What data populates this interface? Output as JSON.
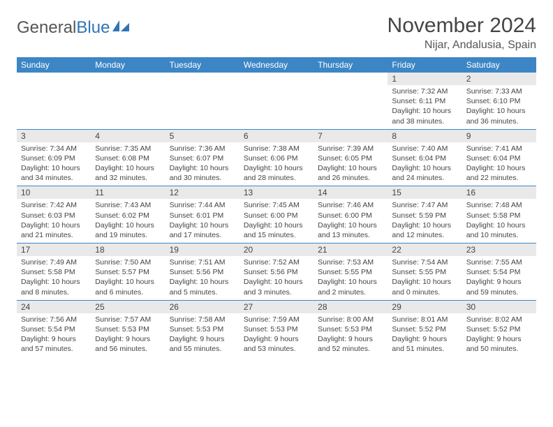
{
  "logo": {
    "text_gray": "General",
    "text_blue": "Blue"
  },
  "header": {
    "month_title": "November 2024",
    "location": "Nijar, Andalusia, Spain"
  },
  "colors": {
    "header_bar": "#3d86c6",
    "day_num_bg": "#e9e9e9",
    "week_divider": "#3d86c6",
    "text": "#444444",
    "logo_gray": "#555555",
    "logo_blue": "#2f74b5",
    "background": "#ffffff"
  },
  "day_names": [
    "Sunday",
    "Monday",
    "Tuesday",
    "Wednesday",
    "Thursday",
    "Friday",
    "Saturday"
  ],
  "weeks": [
    [
      {
        "n": "",
        "sunrise": "",
        "sunset": "",
        "daylight": ""
      },
      {
        "n": "",
        "sunrise": "",
        "sunset": "",
        "daylight": ""
      },
      {
        "n": "",
        "sunrise": "",
        "sunset": "",
        "daylight": ""
      },
      {
        "n": "",
        "sunrise": "",
        "sunset": "",
        "daylight": ""
      },
      {
        "n": "",
        "sunrise": "",
        "sunset": "",
        "daylight": ""
      },
      {
        "n": "1",
        "sunrise": "Sunrise: 7:32 AM",
        "sunset": "Sunset: 6:11 PM",
        "daylight": "Daylight: 10 hours and 38 minutes."
      },
      {
        "n": "2",
        "sunrise": "Sunrise: 7:33 AM",
        "sunset": "Sunset: 6:10 PM",
        "daylight": "Daylight: 10 hours and 36 minutes."
      }
    ],
    [
      {
        "n": "3",
        "sunrise": "Sunrise: 7:34 AM",
        "sunset": "Sunset: 6:09 PM",
        "daylight": "Daylight: 10 hours and 34 minutes."
      },
      {
        "n": "4",
        "sunrise": "Sunrise: 7:35 AM",
        "sunset": "Sunset: 6:08 PM",
        "daylight": "Daylight: 10 hours and 32 minutes."
      },
      {
        "n": "5",
        "sunrise": "Sunrise: 7:36 AM",
        "sunset": "Sunset: 6:07 PM",
        "daylight": "Daylight: 10 hours and 30 minutes."
      },
      {
        "n": "6",
        "sunrise": "Sunrise: 7:38 AM",
        "sunset": "Sunset: 6:06 PM",
        "daylight": "Daylight: 10 hours and 28 minutes."
      },
      {
        "n": "7",
        "sunrise": "Sunrise: 7:39 AM",
        "sunset": "Sunset: 6:05 PM",
        "daylight": "Daylight: 10 hours and 26 minutes."
      },
      {
        "n": "8",
        "sunrise": "Sunrise: 7:40 AM",
        "sunset": "Sunset: 6:04 PM",
        "daylight": "Daylight: 10 hours and 24 minutes."
      },
      {
        "n": "9",
        "sunrise": "Sunrise: 7:41 AM",
        "sunset": "Sunset: 6:04 PM",
        "daylight": "Daylight: 10 hours and 22 minutes."
      }
    ],
    [
      {
        "n": "10",
        "sunrise": "Sunrise: 7:42 AM",
        "sunset": "Sunset: 6:03 PM",
        "daylight": "Daylight: 10 hours and 21 minutes."
      },
      {
        "n": "11",
        "sunrise": "Sunrise: 7:43 AM",
        "sunset": "Sunset: 6:02 PM",
        "daylight": "Daylight: 10 hours and 19 minutes."
      },
      {
        "n": "12",
        "sunrise": "Sunrise: 7:44 AM",
        "sunset": "Sunset: 6:01 PM",
        "daylight": "Daylight: 10 hours and 17 minutes."
      },
      {
        "n": "13",
        "sunrise": "Sunrise: 7:45 AM",
        "sunset": "Sunset: 6:00 PM",
        "daylight": "Daylight: 10 hours and 15 minutes."
      },
      {
        "n": "14",
        "sunrise": "Sunrise: 7:46 AM",
        "sunset": "Sunset: 6:00 PM",
        "daylight": "Daylight: 10 hours and 13 minutes."
      },
      {
        "n": "15",
        "sunrise": "Sunrise: 7:47 AM",
        "sunset": "Sunset: 5:59 PM",
        "daylight": "Daylight: 10 hours and 12 minutes."
      },
      {
        "n": "16",
        "sunrise": "Sunrise: 7:48 AM",
        "sunset": "Sunset: 5:58 PM",
        "daylight": "Daylight: 10 hours and 10 minutes."
      }
    ],
    [
      {
        "n": "17",
        "sunrise": "Sunrise: 7:49 AM",
        "sunset": "Sunset: 5:58 PM",
        "daylight": "Daylight: 10 hours and 8 minutes."
      },
      {
        "n": "18",
        "sunrise": "Sunrise: 7:50 AM",
        "sunset": "Sunset: 5:57 PM",
        "daylight": "Daylight: 10 hours and 6 minutes."
      },
      {
        "n": "19",
        "sunrise": "Sunrise: 7:51 AM",
        "sunset": "Sunset: 5:56 PM",
        "daylight": "Daylight: 10 hours and 5 minutes."
      },
      {
        "n": "20",
        "sunrise": "Sunrise: 7:52 AM",
        "sunset": "Sunset: 5:56 PM",
        "daylight": "Daylight: 10 hours and 3 minutes."
      },
      {
        "n": "21",
        "sunrise": "Sunrise: 7:53 AM",
        "sunset": "Sunset: 5:55 PM",
        "daylight": "Daylight: 10 hours and 2 minutes."
      },
      {
        "n": "22",
        "sunrise": "Sunrise: 7:54 AM",
        "sunset": "Sunset: 5:55 PM",
        "daylight": "Daylight: 10 hours and 0 minutes."
      },
      {
        "n": "23",
        "sunrise": "Sunrise: 7:55 AM",
        "sunset": "Sunset: 5:54 PM",
        "daylight": "Daylight: 9 hours and 59 minutes."
      }
    ],
    [
      {
        "n": "24",
        "sunrise": "Sunrise: 7:56 AM",
        "sunset": "Sunset: 5:54 PM",
        "daylight": "Daylight: 9 hours and 57 minutes."
      },
      {
        "n": "25",
        "sunrise": "Sunrise: 7:57 AM",
        "sunset": "Sunset: 5:53 PM",
        "daylight": "Daylight: 9 hours and 56 minutes."
      },
      {
        "n": "26",
        "sunrise": "Sunrise: 7:58 AM",
        "sunset": "Sunset: 5:53 PM",
        "daylight": "Daylight: 9 hours and 55 minutes."
      },
      {
        "n": "27",
        "sunrise": "Sunrise: 7:59 AM",
        "sunset": "Sunset: 5:53 PM",
        "daylight": "Daylight: 9 hours and 53 minutes."
      },
      {
        "n": "28",
        "sunrise": "Sunrise: 8:00 AM",
        "sunset": "Sunset: 5:53 PM",
        "daylight": "Daylight: 9 hours and 52 minutes."
      },
      {
        "n": "29",
        "sunrise": "Sunrise: 8:01 AM",
        "sunset": "Sunset: 5:52 PM",
        "daylight": "Daylight: 9 hours and 51 minutes."
      },
      {
        "n": "30",
        "sunrise": "Sunrise: 8:02 AM",
        "sunset": "Sunset: 5:52 PM",
        "daylight": "Daylight: 9 hours and 50 minutes."
      }
    ]
  ]
}
